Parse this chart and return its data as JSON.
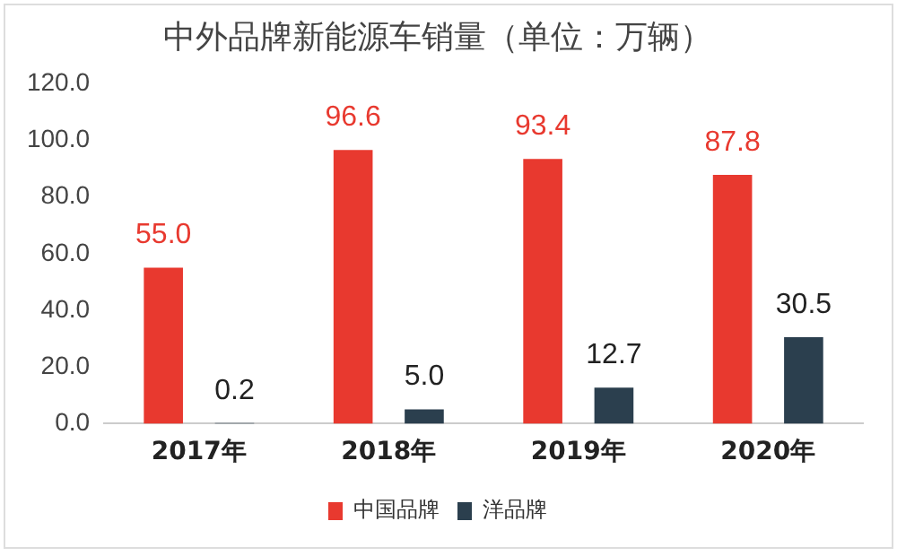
{
  "chart_data": {
    "type": "bar",
    "title": "中外品牌新能源车销量（单位：万辆）",
    "categories": [
      "2017年",
      "2018年",
      "2019年",
      "2020年"
    ],
    "series": [
      {
        "name": "中国品牌",
        "color": "#e8392f",
        "values": [
          55.0,
          96.6,
          93.4,
          87.8
        ],
        "value_labels": [
          "55.0",
          "96.6",
          "93.4",
          "87.8"
        ]
      },
      {
        "name": "洋品牌",
        "color": "#2b3f4e",
        "values": [
          0.2,
          5.0,
          12.7,
          30.5
        ],
        "value_labels": [
          "0.2",
          "5.0",
          "12.7",
          "30.5"
        ]
      }
    ],
    "ylim": [
      0,
      120
    ],
    "yticks": [
      {
        "value": 0,
        "label": "0.0"
      },
      {
        "value": 20,
        "label": "20.0"
      },
      {
        "value": 40,
        "label": "40.0"
      },
      {
        "value": 60,
        "label": "60.0"
      },
      {
        "value": 80,
        "label": "80.0"
      },
      {
        "value": 100,
        "label": "100.0"
      },
      {
        "value": 120,
        "label": "120.0"
      }
    ],
    "grid": false,
    "legend": "bottom"
  }
}
